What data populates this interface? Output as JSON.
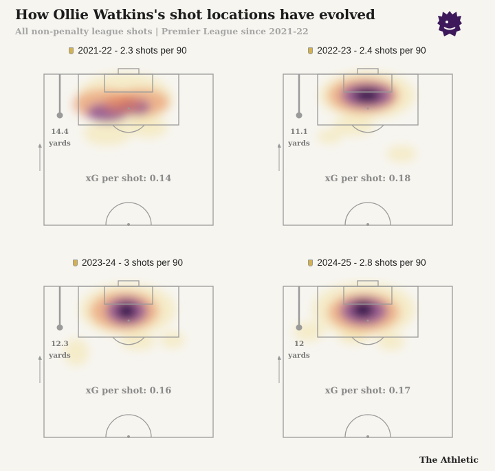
{
  "header": {
    "title": "How Ollie Watkins's shot locations have evolved",
    "subtitle": "All non-penalty league shots | Premier League since 2021-22",
    "logo_icon": "premier-league-lion-icon",
    "credit": "The Athletic"
  },
  "colors": {
    "background": "#f6f5f0",
    "pitch_lines": "#9a9a9a",
    "heat_low": "#f3df9a",
    "heat_mid": "#e8865c",
    "heat_high": "#7a3f95",
    "heat_peak": "#2a0f45",
    "logo": "#3d195b"
  },
  "chart_data": [
    {
      "type": "heatmap",
      "title": "2021-22 - 2.3 shots per 90",
      "season": "2021-22",
      "shots_per_90": 2.3,
      "xg_label": "xG per shot: 0.14",
      "xg_per_shot": 0.14,
      "avg_distance_value": "14.4",
      "avg_distance_unit": "yards",
      "direction_label": "Attack",
      "peak_zone": "centre of penalty area"
    },
    {
      "type": "heatmap",
      "title": "2022-23 - 2.4 shots per 90",
      "season": "2022-23",
      "shots_per_90": 2.4,
      "xg_label": "xG per shot: 0.18",
      "xg_per_shot": 0.18,
      "avg_distance_value": "11.1",
      "avg_distance_unit": "yards",
      "direction_label": "Attack",
      "peak_zone": "central, just outside six-yard box"
    },
    {
      "type": "heatmap",
      "title": "2023-24 - 3 shots per 90",
      "season": "2023-24",
      "shots_per_90": 3,
      "xg_label": "xG per shot: 0.16",
      "xg_per_shot": 0.16,
      "avg_distance_value": "12.3",
      "avg_distance_unit": "yards",
      "direction_label": "Attack",
      "peak_zone": "central, near penalty spot"
    },
    {
      "type": "heatmap",
      "title": "2024-25 - 2.8 shots per 90",
      "season": "2024-25",
      "shots_per_90": 2.8,
      "xg_label": "xG per shot: 0.17",
      "xg_per_shot": 0.17,
      "avg_distance_value": "12",
      "avg_distance_unit": "yards",
      "direction_label": "Attack",
      "peak_zone": "central, near penalty spot"
    }
  ]
}
